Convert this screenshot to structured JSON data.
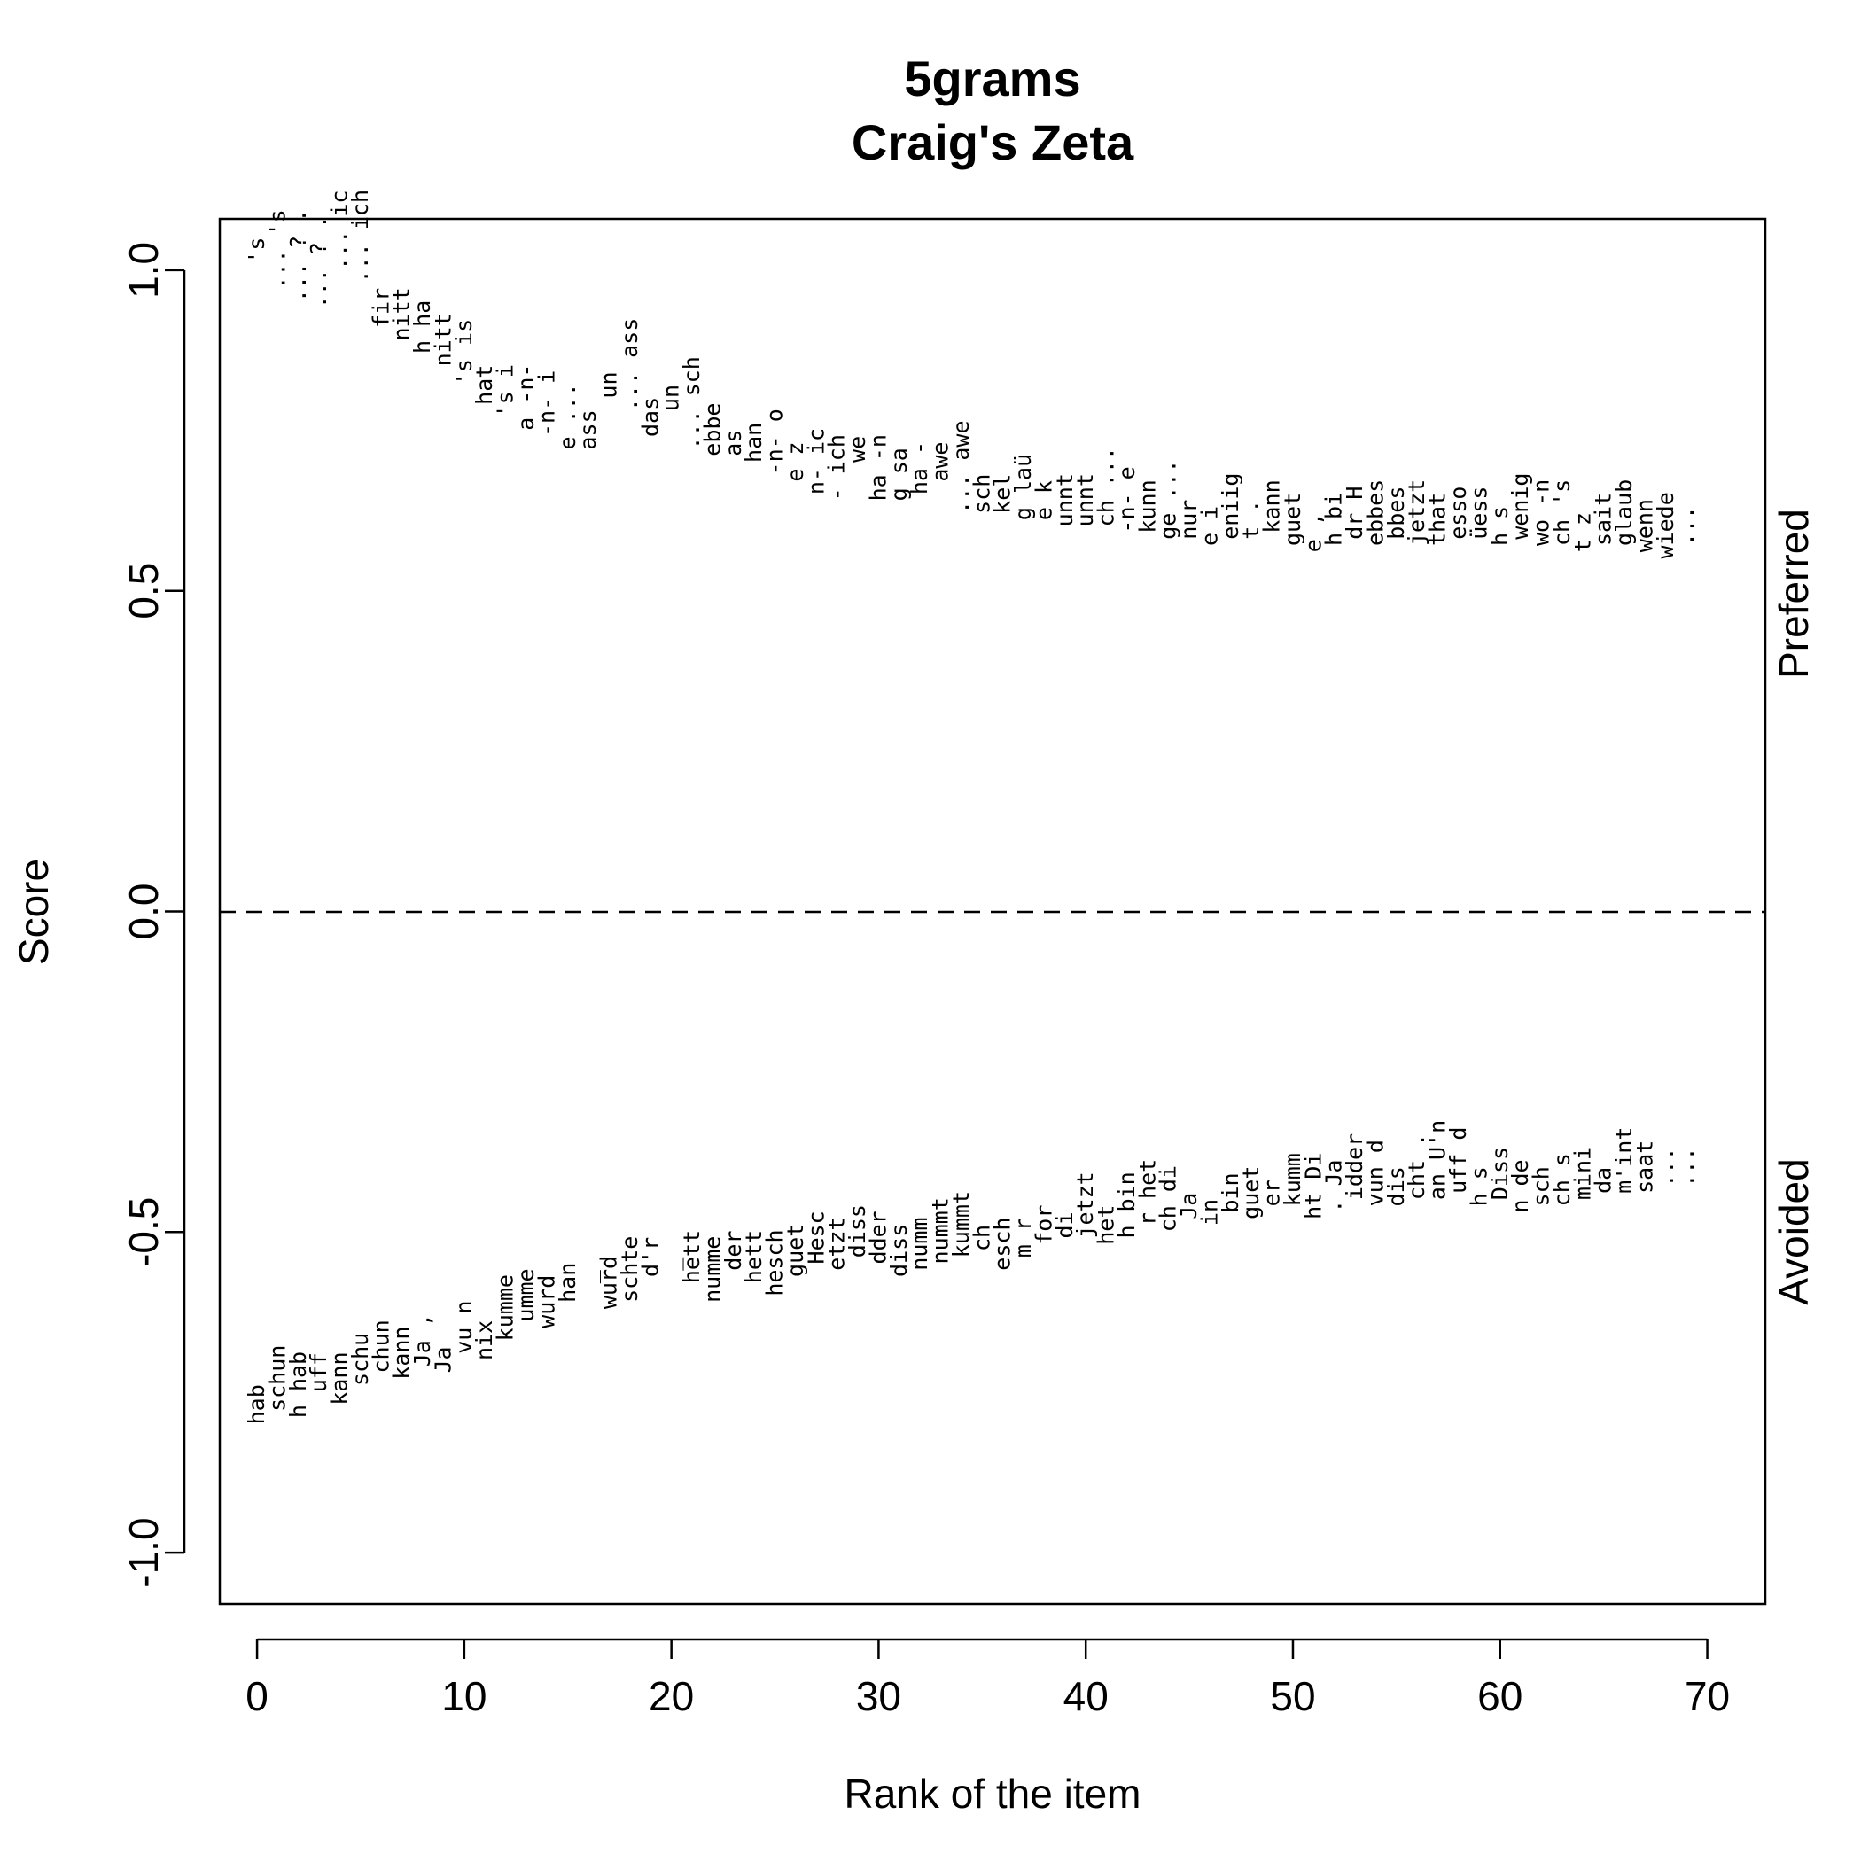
{
  "chart_data": {
    "type": "scatter",
    "title": "5grams",
    "subtitle": "Craig's Zeta",
    "xlabel": "Rank of the item",
    "ylabel": "Score",
    "xlim": [
      -1.8,
      72.8
    ],
    "ylim": [
      -1.08,
      1.08
    ],
    "xticks": [
      "0",
      "10",
      "20",
      "30",
      "40",
      "50",
      "60",
      "70"
    ],
    "yticks": [
      "-1.0",
      "-0.5",
      "0.0",
      "0.5",
      "1.0"
    ],
    "reference_line": {
      "y": 0,
      "style": "dashed"
    },
    "side_labels": {
      "upper": "Preferred",
      "lower": "Avoided"
    },
    "series": [
      {
        "name": "Preferred",
        "labels": [
          "'s",
          "... 's",
          "... ? .",
          "... ? .",
          "... ic",
          "... ich",
          "fir",
          "nitt",
          "h ha",
          "nitt",
          "'s is",
          "hat",
          "'s i",
          "a -n-",
          "-n- i",
          "e ...",
          "ass",
          "un",
          "... ass",
          "das",
          "un",
          "... sch",
          "ebbe",
          "as",
          "han",
          "-n- o",
          "e z",
          "n- ic",
          "- ich",
          "we",
          "ha -n",
          "g sa",
          "ha -",
          "awe",
          "... awe",
          "sch",
          "kel",
          "g laü",
          "e k",
          "unnt",
          "unnt",
          "ch ...",
          "-n- e",
          "kunn",
          "ge ...",
          "nur",
          "e i",
          "eniig",
          "t .",
          "kann",
          "guet",
          "e , ",
          "h bi",
          "dr H",
          "ebbes",
          "bbes",
          "jetzt",
          "that",
          "esso",
          "üess",
          "h s",
          "wenig",
          "wo -n",
          "ch 's",
          "t z",
          "sait",
          "glaub",
          "wenn",
          "wiede",
          "..."
        ],
        "y": [
          1.01,
          0.97,
          0.95,
          0.94,
          1.0,
          0.98,
          0.91,
          0.89,
          0.87,
          0.85,
          0.82,
          0.79,
          0.77,
          0.75,
          0.74,
          0.72,
          0.72,
          0.8,
          0.78,
          0.74,
          0.78,
          0.72,
          0.71,
          0.71,
          0.7,
          0.68,
          0.67,
          0.65,
          0.64,
          0.7,
          0.64,
          0.64,
          0.65,
          0.67,
          0.62,
          0.62,
          0.62,
          0.61,
          0.61,
          0.6,
          0.6,
          0.6,
          0.59,
          0.59,
          0.58,
          0.58,
          0.57,
          0.58,
          0.58,
          0.59,
          0.57,
          0.56,
          0.57,
          0.58,
          0.57,
          0.58,
          0.57,
          0.57,
          0.58,
          0.58,
          0.57,
          0.58,
          0.57,
          0.57,
          0.56,
          0.57,
          0.57,
          0.56,
          0.55,
          0.57
        ]
      },
      {
        "name": "Avoided",
        "labels": [
          "hab",
          "schun",
          "h hab",
          "uff",
          "kann",
          "schu",
          "chun",
          "kann",
          "Ja ,",
          "Ja",
          "vu n",
          "nix",
          "kumme",
          "umme",
          "wurd",
          "han",
          "_",
          "wurd",
          "schte",
          "d'r",
          "_",
          "hett",
          "numme",
          "der",
          "hett",
          "hesch",
          "guet",
          "Hesc",
          "etzt",
          "diss",
          "dder",
          "diss",
          "numm",
          "nummt",
          "kummt",
          "ch",
          "esch",
          "m r",
          "for",
          "di",
          "jetzt",
          "het",
          "h bin",
          "r het",
          "ch di",
          "Ja",
          "in",
          "bin",
          "guet",
          "er",
          "kumm",
          "ht Di",
          ". Ja",
          "idder",
          "vun d",
          "dis",
          "cht .",
          "an U'n",
          "uff d",
          "h s",
          "Diss",
          "n de",
          "sch",
          "ch s",
          "mini",
          "da",
          "m'int",
          "saat",
          "...",
          "..."
        ],
        "y": [
          -0.8,
          -0.78,
          -0.79,
          -0.75,
          -0.77,
          -0.74,
          -0.72,
          -0.73,
          -0.71,
          -0.72,
          -0.69,
          -0.7,
          -0.67,
          -0.64,
          -0.65,
          -0.61,
          -0.58,
          -0.62,
          -0.61,
          -0.57,
          -0.56,
          -0.58,
          -0.61,
          -0.56,
          -0.58,
          -0.6,
          -0.57,
          -0.55,
          -0.56,
          -0.54,
          -0.55,
          -0.57,
          -0.56,
          -0.55,
          -0.54,
          -0.53,
          -0.56,
          -0.54,
          -0.52,
          -0.51,
          -0.51,
          -0.52,
          -0.51,
          -0.49,
          -0.5,
          -0.48,
          -0.49,
          -0.47,
          -0.48,
          -0.46,
          -0.46,
          -0.48,
          -0.47,
          -0.45,
          -0.46,
          -0.46,
          -0.45,
          -0.45,
          -0.44,
          -0.46,
          -0.45,
          -0.47,
          -0.46,
          -0.46,
          -0.45,
          -0.44,
          -0.44,
          -0.44,
          -0.43,
          -0.43
        ]
      }
    ]
  }
}
